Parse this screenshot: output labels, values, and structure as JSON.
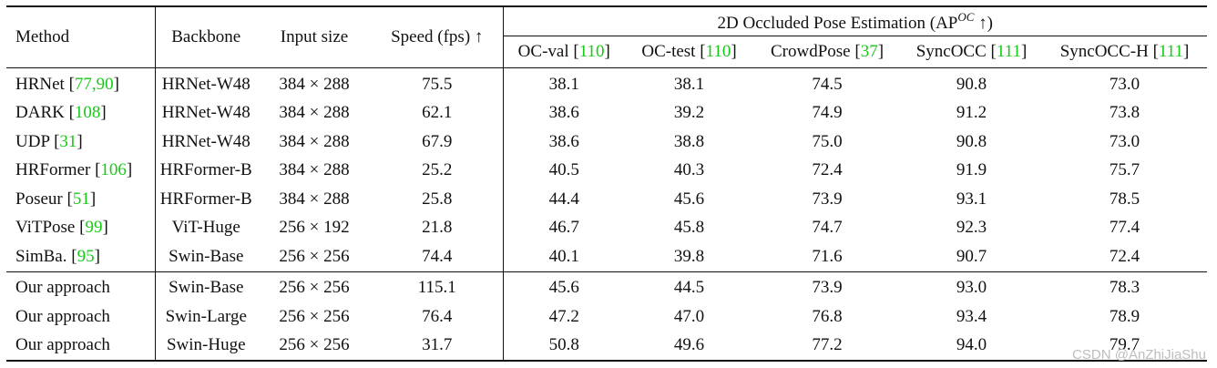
{
  "headers": {
    "method": "Method",
    "backbone": "Backbone",
    "input_size": "Input size",
    "speed": "Speed (fps) ↑",
    "group_prefix": "2D Occluded Pose Estimation (AP",
    "group_sup": "OC",
    "group_suffix": " ↑)",
    "datasets": [
      {
        "name": "OC-val",
        "cite": "110"
      },
      {
        "name": "OC-test",
        "cite": "110"
      },
      {
        "name": "CrowdPose",
        "cite": "37"
      },
      {
        "name": "SyncOCC",
        "cite": "111"
      },
      {
        "name": "SyncOCC-H",
        "cite": "111"
      }
    ]
  },
  "rows": [
    {
      "method": "HRNet",
      "cite": "77,90",
      "backbone": "HRNet-W48",
      "input": "384 × 288",
      "speed": "75.5",
      "scores": [
        "38.1",
        "38.1",
        "74.5",
        "90.8",
        "73.0"
      ],
      "best": []
    },
    {
      "method": "DARK",
      "cite": "108",
      "backbone": "HRNet-W48",
      "input": "384 × 288",
      "speed": "62.1",
      "scores": [
        "38.6",
        "39.2",
        "74.9",
        "91.2",
        "73.8"
      ],
      "best": []
    },
    {
      "method": "UDP",
      "cite": "31",
      "backbone": "HRNet-W48",
      "input": "384 × 288",
      "speed": "67.9",
      "scores": [
        "38.6",
        "38.8",
        "75.0",
        "90.8",
        "73.0"
      ],
      "best": []
    },
    {
      "method": "HRFormer",
      "cite": "106",
      "backbone": "HRFormer-B",
      "input": "384 × 288",
      "speed": "25.2",
      "scores": [
        "40.5",
        "40.3",
        "72.4",
        "91.9",
        "75.7"
      ],
      "best": []
    },
    {
      "method": "Poseur",
      "cite": "51",
      "backbone": "HRFormer-B",
      "input": "384 × 288",
      "speed": "25.8",
      "scores": [
        "44.4",
        "45.6",
        "73.9",
        "93.1",
        "78.5"
      ],
      "best": []
    },
    {
      "method": "ViTPose",
      "cite": "99",
      "backbone": "ViT-Huge",
      "input": "256 × 192",
      "speed": "21.8",
      "scores": [
        "46.7",
        "45.8",
        "74.7",
        "92.3",
        "77.4"
      ],
      "best": []
    },
    {
      "method": "SimBa.",
      "cite": "95",
      "backbone": "Swin-Base",
      "input": "256 × 256",
      "speed": "74.4",
      "scores": [
        "40.1",
        "39.8",
        "71.6",
        "90.7",
        "72.4"
      ],
      "best": []
    },
    {
      "method": "Our approach",
      "cite": "",
      "backbone": "Swin-Base",
      "input": "256 × 256",
      "speed": "115.1",
      "scores": [
        "45.6",
        "44.5",
        "73.9",
        "93.0",
        "78.3"
      ],
      "best": []
    },
    {
      "method": "Our approach",
      "cite": "",
      "backbone": "Swin-Large",
      "input": "256 × 256",
      "speed": "76.4",
      "scores": [
        "47.2",
        "47.0",
        "76.8",
        "93.4",
        "78.9"
      ],
      "best": []
    },
    {
      "method": "Our approach",
      "cite": "",
      "backbone": "Swin-Huge",
      "input": "256 × 256",
      "speed": "31.7",
      "scores": [
        "50.8",
        "49.6",
        "77.2",
        "94.0",
        "79.7"
      ],
      "best": [
        0,
        1,
        2,
        3,
        4
      ]
    }
  ],
  "watermark": "CSDN @AnZhiJiaShu"
}
